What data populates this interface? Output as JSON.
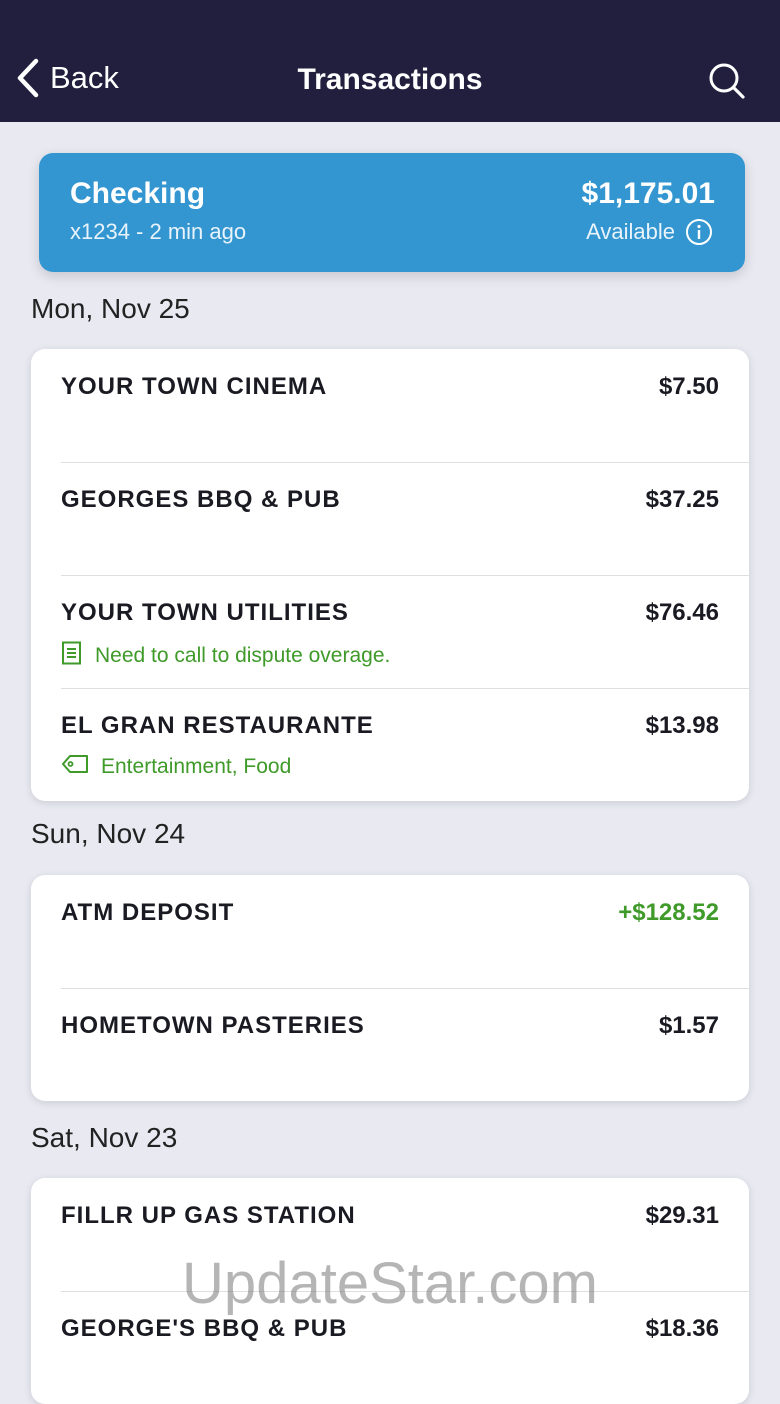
{
  "nav": {
    "back_label": "Back",
    "title": "Transactions"
  },
  "account": {
    "name": "Checking",
    "subtitle": "x1234 - 2 min ago",
    "balance": "$1,175.01",
    "balance_label": "Available",
    "color": "#3396d0"
  },
  "groups": [
    {
      "date": "Mon, Nov 25",
      "transactions": [
        {
          "name": "YOUR TOWN CINEMA",
          "amount": "$7.50"
        },
        {
          "name": "GEORGES BBQ & PUB",
          "amount": "$37.25"
        },
        {
          "name": "YOUR TOWN UTILITIES",
          "amount": "$76.46",
          "memo": "Need to call to dispute overage.",
          "memo_icon": "note-icon"
        },
        {
          "name": "EL GRAN RESTAURANTE",
          "amount": "$13.98",
          "memo": "Entertainment, Food",
          "memo_icon": "tag-icon"
        }
      ]
    },
    {
      "date": "Sun, Nov 24",
      "transactions": [
        {
          "name": "ATM DEPOSIT",
          "amount": "+$128.52",
          "positive": true
        },
        {
          "name": "HOMETOWN PASTERIES",
          "amount": "$1.57"
        }
      ]
    },
    {
      "date": "Sat, Nov 23",
      "transactions": [
        {
          "name": "FILLR UP GAS STATION",
          "amount": "$29.31"
        },
        {
          "name": "GEORGE'S BBQ & PUB",
          "amount": "$18.36"
        }
      ]
    }
  ],
  "watermark": "UpdateStar.com",
  "colors": {
    "nav": "#211f3d",
    "positive": "#3f9a2a",
    "background": "#e8e9f1"
  }
}
